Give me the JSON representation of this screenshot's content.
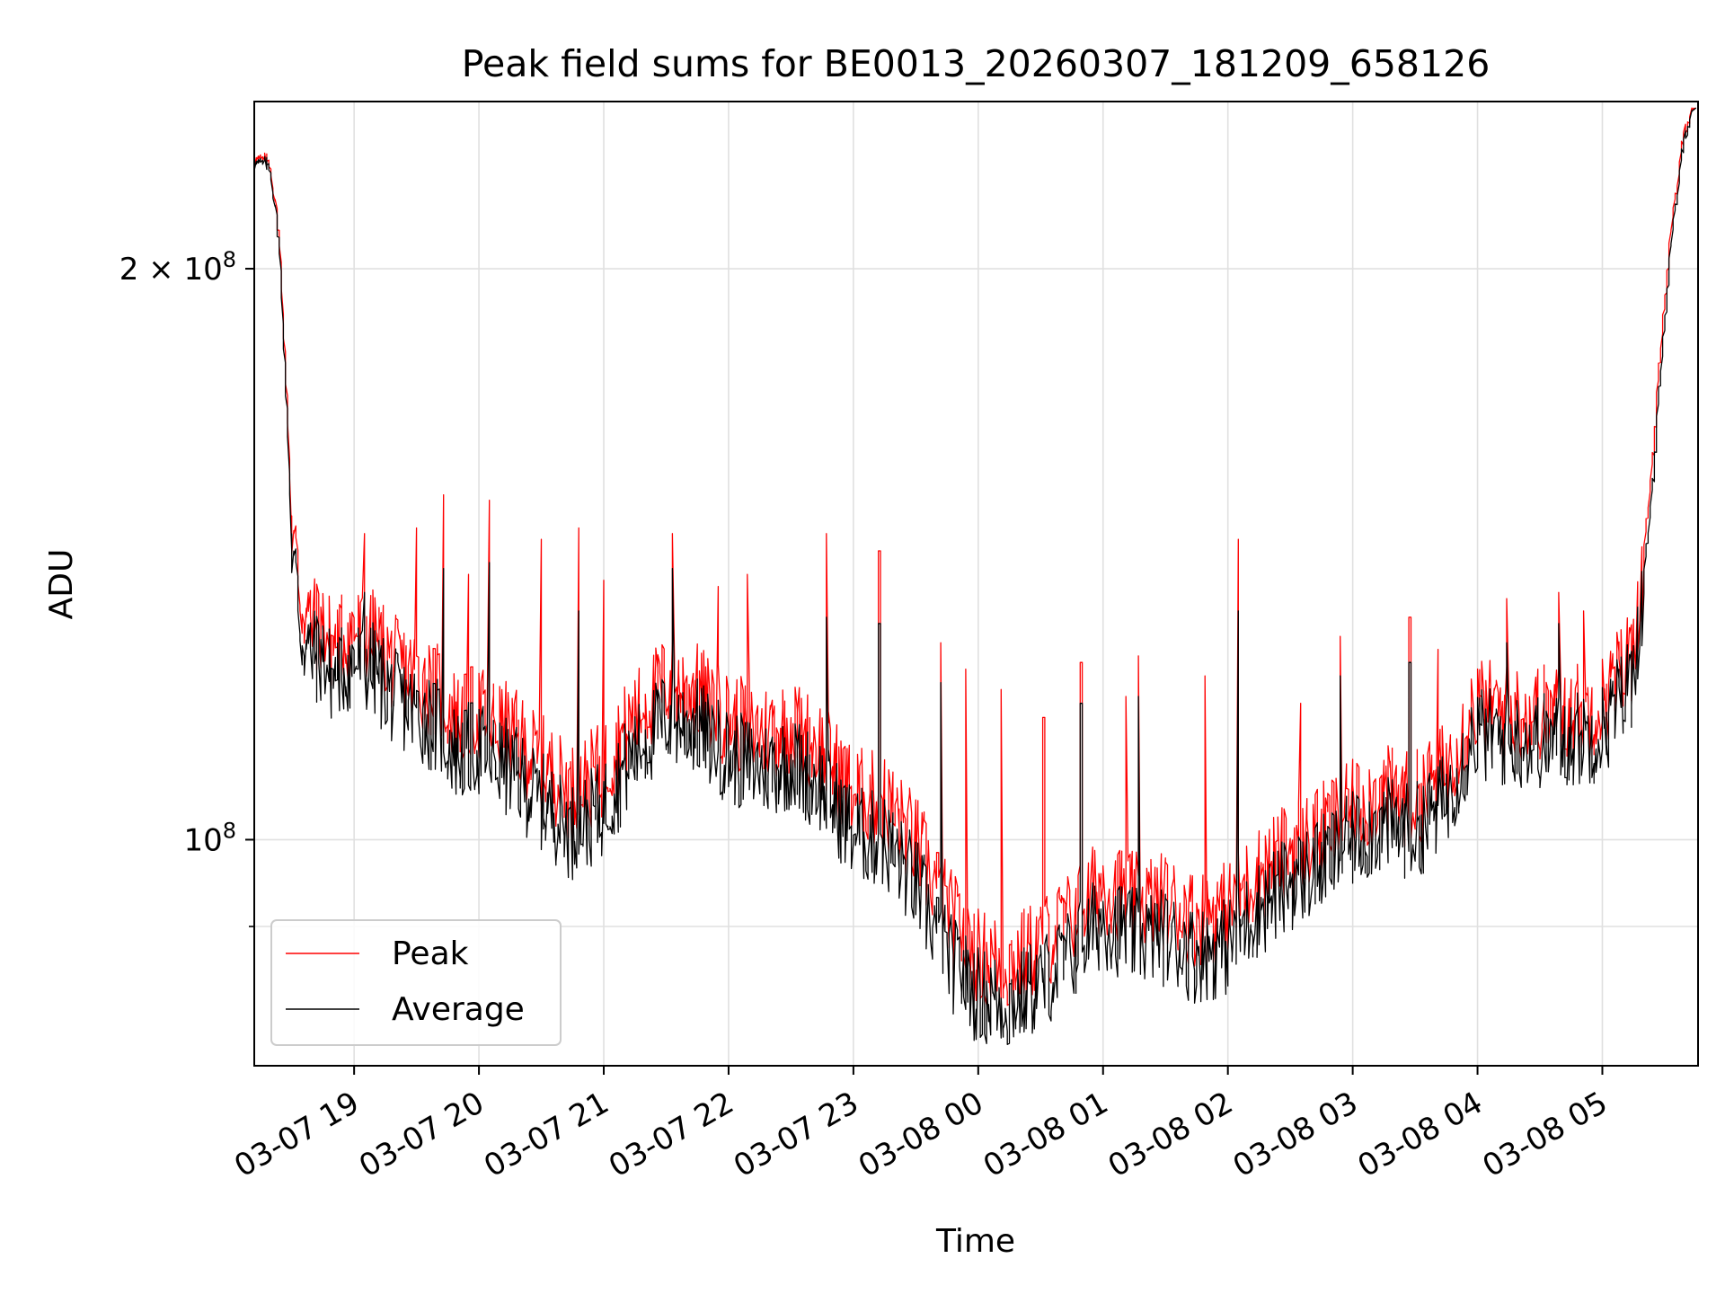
{
  "chart_data": {
    "type": "line",
    "title": "Peak field sums for BE0013_20260307_181209_658126",
    "xlabel": "Time",
    "ylabel": "ADU",
    "y_scale": "log",
    "xlim": [
      "2026-03-07 18:12",
      "2026-03-08 05:46"
    ],
    "ylim": [
      76000000,
      245000000
    ],
    "grid": true,
    "legend_position": "lower-left",
    "x_tick_labels": [
      "03-07 19",
      "03-07 20",
      "03-07 21",
      "03-07 22",
      "03-07 23",
      "03-08 00",
      "03-08 01",
      "03-08 02",
      "03-08 03",
      "03-08 04",
      "03-08 05"
    ],
    "x_tick_times": [
      "2026-03-07 19:00",
      "2026-03-07 20:00",
      "2026-03-07 21:00",
      "2026-03-07 22:00",
      "2026-03-07 23:00",
      "2026-03-08 00:00",
      "2026-03-08 01:00",
      "2026-03-08 02:00",
      "2026-03-08 03:00",
      "2026-03-08 04:00",
      "2026-03-08 05:00"
    ],
    "y_major_ticks": [
      {
        "value": 100000000,
        "label_base": "10",
        "label_exp": "8"
      },
      {
        "value": 200000000,
        "label_base": "2 × 10",
        "label_exp": "8"
      }
    ],
    "y_minor_ticks": [
      90000000
    ],
    "series": [
      {
        "name": "Peak",
        "color": "#ff0000",
        "x": [
          "2026-03-07 18:12",
          "2026-03-07 18:20",
          "2026-03-07 18:25",
          "2026-03-07 18:30",
          "2026-03-07 18:35",
          "2026-03-07 18:40",
          "2026-03-07 18:45",
          "2026-03-07 18:50",
          "2026-03-07 19:00",
          "2026-03-07 19:10",
          "2026-03-07 19:20",
          "2026-03-07 19:30",
          "2026-03-07 19:40",
          "2026-03-07 19:50",
          "2026-03-07 20:00",
          "2026-03-07 20:15",
          "2026-03-07 20:30",
          "2026-03-07 20:45",
          "2026-03-07 21:00",
          "2026-03-07 21:15",
          "2026-03-07 21:30",
          "2026-03-07 21:45",
          "2026-03-07 22:00",
          "2026-03-07 22:15",
          "2026-03-07 22:30",
          "2026-03-07 22:45",
          "2026-03-07 23:00",
          "2026-03-07 23:15",
          "2026-03-07 23:30",
          "2026-03-07 23:45",
          "2026-03-08 00:00",
          "2026-03-08 00:15",
          "2026-03-08 00:30",
          "2026-03-08 00:45",
          "2026-03-08 01:00",
          "2026-03-08 01:15",
          "2026-03-08 01:30",
          "2026-03-08 01:45",
          "2026-03-08 02:00",
          "2026-03-08 02:15",
          "2026-03-08 02:30",
          "2026-03-08 02:45",
          "2026-03-08 03:00",
          "2026-03-08 03:15",
          "2026-03-08 03:30",
          "2026-03-08 03:45",
          "2026-03-08 04:00",
          "2026-03-08 04:15",
          "2026-03-08 04:30",
          "2026-03-08 04:45",
          "2026-03-08 05:00",
          "2026-03-08 05:15",
          "2026-03-08 05:20",
          "2026-03-08 05:25",
          "2026-03-08 05:30",
          "2026-03-08 05:35",
          "2026-03-08 05:40",
          "2026-03-08 05:45"
        ],
        "y": [
          228000000,
          228000000,
          205000000,
          150000000,
          133000000,
          130000000,
          130000000,
          127000000,
          129000000,
          128000000,
          124000000,
          122000000,
          120000000,
          116000000,
          117000000,
          114000000,
          110000000,
          106000000,
          109000000,
          116000000,
          121000000,
          120000000,
          116000000,
          114000000,
          115000000,
          112000000,
          106000000,
          105000000,
          100000000,
          92000000,
          87000000,
          86000000,
          88000000,
          91000000,
          95000000,
          93000000,
          93000000,
          91000000,
          92000000,
          96000000,
          99000000,
          101000000,
          104000000,
          106000000,
          105000000,
          109000000,
          118000000,
          117000000,
          117000000,
          117000000,
          118000000,
          126000000,
          138000000,
          160000000,
          190000000,
          215000000,
          237000000,
          244000000
        ],
        "spikes": [
          [
            "2026-03-07 19:05",
            145000000
          ],
          [
            "2026-03-07 19:30",
            146000000
          ],
          [
            "2026-03-07 19:43",
            152000000
          ],
          [
            "2026-03-07 19:55",
            138000000
          ],
          [
            "2026-03-07 20:05",
            151000000
          ],
          [
            "2026-03-07 20:30",
            144000000
          ],
          [
            "2026-03-07 20:48",
            146000000
          ],
          [
            "2026-03-07 21:00",
            137000000
          ],
          [
            "2026-03-07 21:34",
            145000000
          ],
          [
            "2026-03-07 21:55",
            136000000
          ],
          [
            "2026-03-07 22:10",
            138000000
          ],
          [
            "2026-03-07 22:48",
            145000000
          ],
          [
            "2026-03-07 23:13",
            142000000
          ],
          [
            "2026-03-07 23:43",
            127000000
          ],
          [
            "2026-03-07 23:55",
            123000000
          ],
          [
            "2026-03-08 00:12",
            120000000
          ],
          [
            "2026-03-08 00:32",
            116000000
          ],
          [
            "2026-03-08 00:50",
            124000000
          ],
          [
            "2026-03-08 01:12",
            119000000
          ],
          [
            "2026-03-08 01:18",
            125000000
          ],
          [
            "2026-03-08 01:50",
            122000000
          ],
          [
            "2026-03-08 02:05",
            144000000
          ],
          [
            "2026-03-08 02:35",
            118000000
          ],
          [
            "2026-03-08 02:55",
            128000000
          ],
          [
            "2026-03-08 03:28",
            131000000
          ],
          [
            "2026-03-08 03:41",
            126000000
          ],
          [
            "2026-03-08 04:15",
            134000000
          ],
          [
            "2026-03-08 04:40",
            135000000
          ],
          [
            "2026-03-08 04:52",
            132000000
          ]
        ]
      },
      {
        "name": "Average",
        "color": "#000000",
        "x": [
          "2026-03-07 18:12",
          "2026-03-07 18:20",
          "2026-03-07 18:25",
          "2026-03-07 18:30",
          "2026-03-07 18:35",
          "2026-03-07 18:40",
          "2026-03-07 18:45",
          "2026-03-07 18:50",
          "2026-03-07 19:00",
          "2026-03-07 19:10",
          "2026-03-07 19:20",
          "2026-03-07 19:30",
          "2026-03-07 19:40",
          "2026-03-07 19:50",
          "2026-03-07 20:00",
          "2026-03-07 20:15",
          "2026-03-07 20:30",
          "2026-03-07 20:45",
          "2026-03-07 21:00",
          "2026-03-07 21:15",
          "2026-03-07 21:30",
          "2026-03-07 21:45",
          "2026-03-07 22:00",
          "2026-03-07 22:15",
          "2026-03-07 22:30",
          "2026-03-07 22:45",
          "2026-03-07 23:00",
          "2026-03-07 23:15",
          "2026-03-07 23:30",
          "2026-03-07 23:45",
          "2026-03-08 00:00",
          "2026-03-08 00:15",
          "2026-03-08 00:30",
          "2026-03-08 00:45",
          "2026-03-08 01:00",
          "2026-03-08 01:15",
          "2026-03-08 01:30",
          "2026-03-08 01:45",
          "2026-03-08 02:00",
          "2026-03-08 02:15",
          "2026-03-08 02:30",
          "2026-03-08 02:45",
          "2026-03-08 03:00",
          "2026-03-08 03:15",
          "2026-03-08 03:30",
          "2026-03-08 03:45",
          "2026-03-08 04:00",
          "2026-03-08 04:15",
          "2026-03-08 04:30",
          "2026-03-08 04:45",
          "2026-03-08 05:00",
          "2026-03-08 05:15",
          "2026-03-08 05:20",
          "2026-03-08 05:25",
          "2026-03-08 05:30",
          "2026-03-08 05:35",
          "2026-03-08 05:40",
          "2026-03-08 05:45"
        ],
        "y": [
          227000000,
          227000000,
          203000000,
          147000000,
          128000000,
          125000000,
          125000000,
          122000000,
          124000000,
          123000000,
          119000000,
          117000000,
          115000000,
          111000000,
          112000000,
          109000000,
          105000000,
          101000000,
          104000000,
          111000000,
          116000000,
          115000000,
          111000000,
          109000000,
          110000000,
          107000000,
          101000000,
          100000000,
          95000000,
          87000000,
          83000000,
          82000000,
          84000000,
          87000000,
          91000000,
          89000000,
          89000000,
          87000000,
          88000000,
          92000000,
          95000000,
          97000000,
          100000000,
          102000000,
          101000000,
          105000000,
          114000000,
          113000000,
          113000000,
          113000000,
          114000000,
          122000000,
          134000000,
          155000000,
          185000000,
          212000000,
          235000000,
          244000000
        ],
        "spikes": [
          [
            "2026-03-07 19:05",
            135000000
          ],
          [
            "2026-03-07 19:43",
            139000000
          ],
          [
            "2026-03-07 20:05",
            140000000
          ],
          [
            "2026-03-07 20:48",
            132000000
          ],
          [
            "2026-03-07 21:34",
            139000000
          ],
          [
            "2026-03-07 22:48",
            131000000
          ],
          [
            "2026-03-07 23:13",
            130000000
          ],
          [
            "2026-03-07 23:43",
            121000000
          ],
          [
            "2026-03-08 00:50",
            118000000
          ],
          [
            "2026-03-08 01:18",
            119000000
          ],
          [
            "2026-03-08 02:05",
            132000000
          ],
          [
            "2026-03-08 02:55",
            122000000
          ],
          [
            "2026-03-08 03:28",
            124000000
          ],
          [
            "2026-03-08 04:15",
            127000000
          ],
          [
            "2026-03-08 04:40",
            130000000
          ]
        ]
      }
    ]
  }
}
